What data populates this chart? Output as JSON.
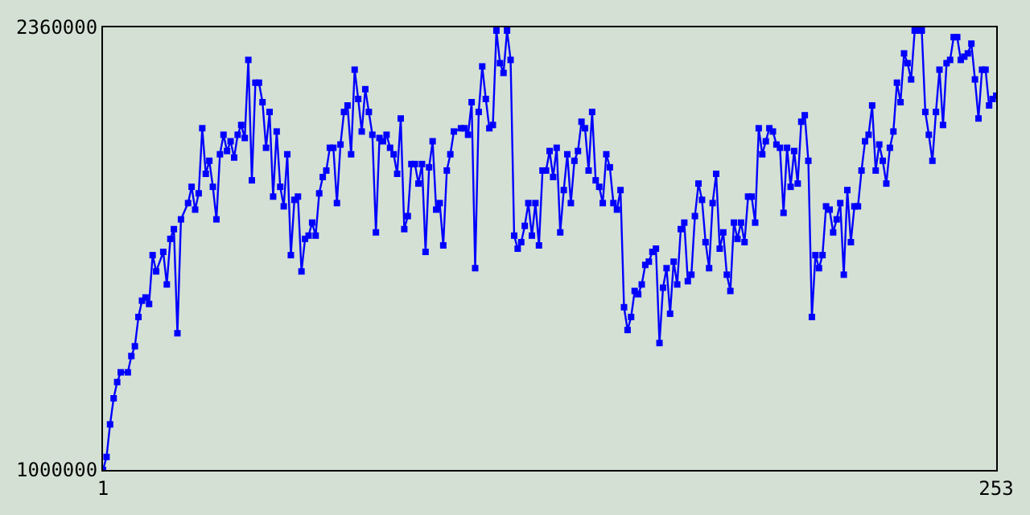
{
  "chart_data": {
    "type": "line",
    "marker": "square",
    "line_style": "solid",
    "xlim": [
      1,
      253
    ],
    "xticks": [
      1,
      253
    ],
    "ylim": [
      1000000,
      2360000
    ],
    "yticks": [
      1000000,
      2360000
    ],
    "series": [
      {
        "color": "#0000ff",
        "x": [
          1,
          2,
          3,
          4,
          5,
          6,
          8,
          9,
          10,
          11,
          12,
          13,
          14,
          15,
          16,
          18,
          19,
          20,
          21,
          22,
          23,
          25,
          26,
          27,
          28,
          29,
          30,
          31,
          32,
          33,
          34,
          35,
          36,
          37,
          38,
          39,
          40,
          41,
          42,
          43,
          44,
          45,
          46,
          47,
          48,
          49,
          50,
          51,
          52,
          53,
          54,
          55,
          56,
          57,
          58,
          59,
          60,
          61,
          62,
          63,
          64,
          65,
          66,
          67,
          68,
          69,
          70,
          71,
          72,
          73,
          74,
          75,
          76,
          77,
          78,
          79,
          80,
          81,
          82,
          83,
          84,
          85,
          86,
          87,
          88,
          89,
          90,
          91,
          92,
          93,
          94,
          95,
          96,
          97,
          98,
          99,
          100,
          102,
          103,
          104,
          105,
          106,
          107,
          108,
          109,
          110,
          111,
          112,
          113,
          114,
          115,
          116,
          117,
          118,
          119,
          120,
          121,
          122,
          123,
          124,
          125,
          126,
          127,
          128,
          129,
          130,
          131,
          132,
          133,
          134,
          135,
          136,
          137,
          138,
          139,
          140,
          141,
          142,
          143,
          144,
          145,
          146,
          147,
          148,
          149,
          150,
          151,
          152,
          153,
          154,
          155,
          156,
          157,
          158,
          159,
          160,
          161,
          162,
          163,
          164,
          165,
          166,
          167,
          168,
          169,
          170,
          171,
          172,
          173,
          174,
          175,
          176,
          177,
          178,
          179,
          180,
          181,
          182,
          183,
          184,
          185,
          186,
          187,
          188,
          189,
          190,
          191,
          192,
          193,
          194,
          195,
          196,
          197,
          198,
          199,
          200,
          201,
          202,
          203,
          204,
          205,
          206,
          207,
          208,
          209,
          210,
          211,
          212,
          213,
          214,
          215,
          216,
          217,
          218,
          219,
          220,
          221,
          222,
          223,
          224,
          225,
          226,
          227,
          228,
          229,
          230,
          231,
          232,
          233,
          234,
          235,
          236,
          237,
          238,
          239,
          240,
          241,
          242,
          243,
          244,
          245,
          246,
          247,
          248,
          249,
          250,
          251,
          252,
          253
        ],
        "values": [
          1000000,
          1040000,
          1140000,
          1220000,
          1270000,
          1300000,
          1300000,
          1350000,
          1380000,
          1470000,
          1520000,
          1530000,
          1510000,
          1660000,
          1610000,
          1670000,
          1570000,
          1710000,
          1740000,
          1420000,
          1770000,
          1820000,
          1870000,
          1800000,
          1850000,
          2050000,
          1910000,
          1950000,
          1870000,
          1770000,
          1970000,
          2030000,
          1980000,
          2010000,
          1960000,
          2030000,
          2060000,
          2020000,
          2260000,
          1890000,
          2190000,
          2190000,
          2130000,
          1990000,
          2100000,
          1840000,
          2040000,
          1870000,
          1810000,
          1970000,
          1660000,
          1830000,
          1840000,
          1610000,
          1710000,
          1720000,
          1760000,
          1720000,
          1850000,
          1900000,
          1920000,
          1990000,
          1990000,
          1820000,
          2000000,
          2100000,
          2120000,
          1970000,
          2230000,
          2140000,
          2040000,
          2170000,
          2100000,
          2030000,
          1730000,
          2020000,
          2010000,
          2030000,
          1990000,
          1970000,
          1910000,
          2080000,
          1740000,
          1780000,
          1940000,
          1940000,
          1880000,
          1940000,
          1670000,
          1930000,
          2010000,
          1800000,
          1820000,
          1690000,
          1920000,
          1970000,
          2040000,
          2050000,
          2050000,
          2030000,
          2130000,
          1620000,
          2100000,
          2240000,
          2140000,
          2050000,
          2060000,
          2350000,
          2250000,
          2220000,
          2350000,
          2260000,
          1720000,
          1680000,
          1700000,
          1750000,
          1820000,
          1720000,
          1820000,
          1690000,
          1920000,
          1920000,
          1980000,
          1900000,
          1990000,
          1730000,
          1860000,
          1970000,
          1820000,
          1950000,
          1980000,
          2070000,
          2050000,
          1920000,
          2100000,
          1890000,
          1870000,
          1820000,
          1970000,
          1930000,
          1820000,
          1800000,
          1860000,
          1500000,
          1430000,
          1470000,
          1550000,
          1540000,
          1570000,
          1630000,
          1640000,
          1670000,
          1680000,
          1390000,
          1560000,
          1620000,
          1480000,
          1640000,
          1570000,
          1740000,
          1760000,
          1580000,
          1600000,
          1780000,
          1880000,
          1830000,
          1700000,
          1620000,
          1820000,
          1910000,
          1680000,
          1730000,
          1600000,
          1550000,
          1760000,
          1710000,
          1760000,
          1700000,
          1840000,
          1840000,
          1760000,
          2050000,
          1970000,
          2010000,
          2050000,
          2040000,
          2000000,
          1990000,
          1790000,
          1990000,
          1870000,
          1980000,
          1880000,
          2070000,
          2090000,
          1950000,
          1470000,
          1660000,
          1620000,
          1660000,
          1810000,
          1800000,
          1730000,
          1770000,
          1820000,
          1600000,
          1860000,
          1700000,
          1810000,
          1810000,
          1920000,
          2010000,
          2030000,
          2120000,
          1920000,
          2000000,
          1950000,
          1880000,
          1990000,
          2040000,
          2190000,
          2130000,
          2280000,
          2250000,
          2200000,
          2350000,
          2350000,
          2350000,
          2100000,
          2030000,
          1950000,
          2100000,
          2230000,
          2060000,
          2250000,
          2260000,
          2330000,
          2330000,
          2260000,
          2270000,
          2280000,
          2310000,
          2200000,
          2080000,
          2230000,
          2230000,
          2120000,
          2140000,
          2150000
        ]
      }
    ]
  }
}
